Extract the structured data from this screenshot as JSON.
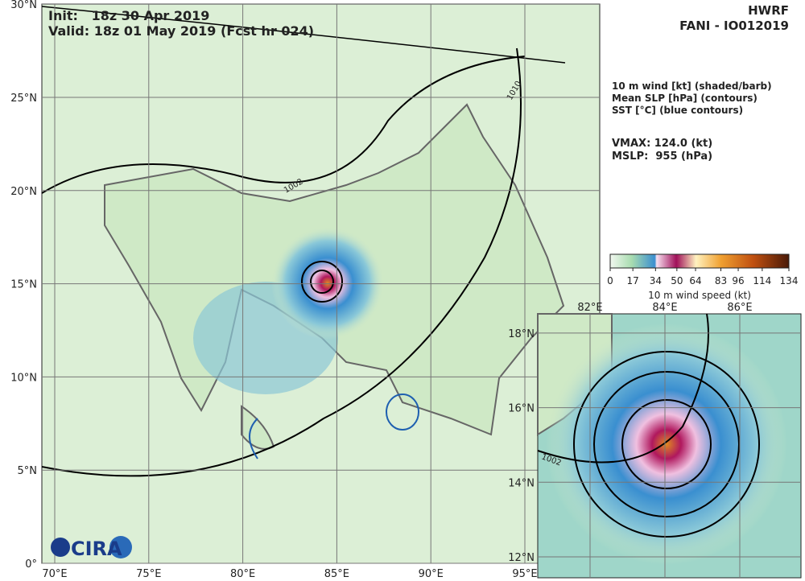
{
  "header": {
    "init": "Init:   18z 30 Apr 2019",
    "valid": "Valid: 18z 01 May 2019 (Fcst hr 024)",
    "model": "HWRF",
    "storm": "FANI - IO012019"
  },
  "legend": [
    "10 m wind [kt] (shaded/barb)",
    "Mean SLP [hPa] (contours)",
    "SST [°C] (blue contours)"
  ],
  "stats": [
    "VMAX: 124.0 (kt)",
    "MSLP:  955 (hPa)"
  ],
  "colorbar": {
    "label": "10 m wind speed (kt)",
    "lim": [
      0,
      134
    ],
    "ticks": [
      0,
      17,
      34,
      50,
      64,
      83,
      96,
      114,
      134
    ]
  },
  "main_map": {
    "lat_labels": [
      "0°",
      "5°N",
      "10°N",
      "15°N",
      "20°N",
      "25°N",
      "30°N"
    ],
    "lon_labels": [
      "70°E",
      "75°E",
      "80°E",
      "85°E",
      "90°E",
      "95°E"
    ],
    "contour_labels": [
      "1002",
      "1010"
    ]
  },
  "inset_map": {
    "lat_labels": [
      "12°N",
      "14°N",
      "16°N",
      "18°N"
    ],
    "lon_labels": [
      "82°E",
      "84°E",
      "86°E"
    ],
    "contour_labels": [
      "1002"
    ]
  },
  "logo": "CIRA"
}
